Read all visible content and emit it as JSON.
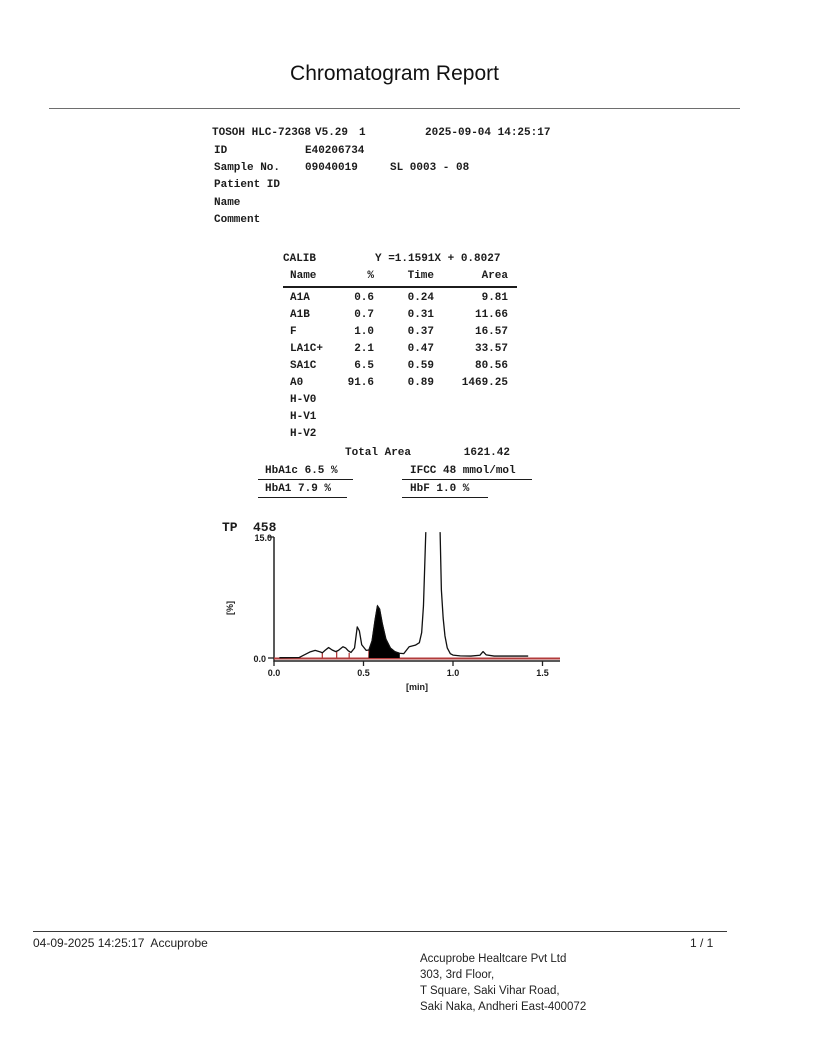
{
  "page": {
    "title": "Chromatogram Report"
  },
  "instrument": {
    "model": "TOSOH HLC-723G8",
    "version": "V5.29",
    "run_flag": "1",
    "datetime": "2025-09-04 14:25:17",
    "id_label": "ID",
    "id_value": "E40206734",
    "sample_label": "Sample No.",
    "sample_value": "09040019",
    "sl_value": "SL 0003 - 08",
    "patient_id_label": "Patient ID",
    "name_label": "Name",
    "comment_label": "Comment"
  },
  "calib": {
    "label": "CALIB",
    "equation": "Y =1.1591X + 0.8027",
    "headers": {
      "name": "Name",
      "pct": "%",
      "time": "Time",
      "area": "Area"
    },
    "rows": [
      {
        "name": "A1A",
        "pct": "0.6",
        "time": "0.24",
        "area": "9.81"
      },
      {
        "name": "A1B",
        "pct": "0.7",
        "time": "0.31",
        "area": "11.66"
      },
      {
        "name": "F",
        "pct": "1.0",
        "time": "0.37",
        "area": "16.57"
      },
      {
        "name": "LA1C+",
        "pct": "2.1",
        "time": "0.47",
        "area": "33.57"
      },
      {
        "name": "SA1C",
        "pct": "6.5",
        "time": "0.59",
        "area": "80.56"
      },
      {
        "name": "A0",
        "pct": "91.6",
        "time": "0.89",
        "area": "1469.25"
      },
      {
        "name": "H-V0",
        "pct": "",
        "time": "",
        "area": ""
      },
      {
        "name": "H-V1",
        "pct": "",
        "time": "",
        "area": ""
      },
      {
        "name": "H-V2",
        "pct": "",
        "time": "",
        "area": ""
      }
    ],
    "total_area_label": "Total Area",
    "total_area_value": "1621.42"
  },
  "results": {
    "hba1c": "HbA1c 6.5 %",
    "ifcc": "IFCC 48 mmol/mol",
    "hba1": "HbA1 7.9 %",
    "hbf": "HbF 1.0 %"
  },
  "chart_data": {
    "type": "line",
    "tp_label": "TP",
    "tp_value": "458",
    "xlabel": "[min]",
    "ylabel": "[%]",
    "xlim": [
      0.0,
      1.6
    ],
    "ylim": [
      0.0,
      15.0
    ],
    "xticks": [
      0.0,
      0.5,
      1.0,
      1.5
    ],
    "xtick_labels": [
      "0.0",
      "0.5",
      "1.0",
      "1.5"
    ],
    "yticks": [
      15.0,
      0.0
    ],
    "ytick_labels": [
      "15.0",
      "0.0"
    ],
    "trace_color": "#111111",
    "baseline_color": "#b23b3b",
    "fill_color": "#000000",
    "peaks": [
      {
        "name": "A1A",
        "time": 0.24,
        "height_pct": 1.0,
        "filled": false,
        "clipped": false
      },
      {
        "name": "A1B",
        "time": 0.31,
        "height_pct": 1.4,
        "filled": false,
        "clipped": false
      },
      {
        "name": "F",
        "time": 0.37,
        "height_pct": 1.5,
        "filled": false,
        "clipped": false
      },
      {
        "name": "LA1C+",
        "time": 0.47,
        "height_pct": 3.9,
        "filled": false,
        "clipped": false
      },
      {
        "name": "SA1C",
        "time": 0.59,
        "height_pct": 6.5,
        "filled": true,
        "clipped": false
      },
      {
        "name": "A0",
        "time": 0.89,
        "height_pct": 15.0,
        "filled": false,
        "clipped": true
      }
    ],
    "trace_segments": [
      [
        [
          0.03,
          0.1
        ],
        [
          0.14,
          0.12
        ],
        [
          0.17,
          0.45
        ],
        [
          0.2,
          0.8
        ],
        [
          0.23,
          1.0
        ],
        [
          0.26,
          0.8
        ],
        [
          0.27,
          0.7
        ],
        [
          0.285,
          1.0
        ],
        [
          0.305,
          1.35
        ],
        [
          0.325,
          1.05
        ],
        [
          0.345,
          0.85
        ],
        [
          0.36,
          1.0
        ],
        [
          0.385,
          1.45
        ],
        [
          0.4,
          1.3
        ],
        [
          0.415,
          0.95
        ],
        [
          0.43,
          0.75
        ],
        [
          0.45,
          1.3
        ],
        [
          0.465,
          3.9
        ],
        [
          0.477,
          3.4
        ],
        [
          0.49,
          1.7
        ],
        [
          0.515,
          1.0
        ],
        [
          0.53,
          1.05
        ],
        [
          0.548,
          2.2
        ],
        [
          0.565,
          4.8
        ],
        [
          0.578,
          6.5
        ],
        [
          0.59,
          6.1
        ],
        [
          0.605,
          4.3
        ],
        [
          0.625,
          2.4
        ],
        [
          0.65,
          1.3
        ],
        [
          0.675,
          0.85
        ],
        [
          0.7,
          0.65
        ],
        [
          0.725,
          0.6
        ],
        [
          0.755,
          1.45
        ],
        [
          0.79,
          1.65
        ],
        [
          0.812,
          1.95
        ],
        [
          0.825,
          3.2
        ],
        [
          0.835,
          6.5
        ],
        [
          0.848,
          15.6
        ]
      ],
      [
        [
          0.928,
          15.6
        ],
        [
          0.935,
          8.5
        ],
        [
          0.945,
          5.0
        ],
        [
          0.955,
          2.8
        ],
        [
          0.968,
          1.3
        ],
        [
          0.985,
          0.6
        ],
        [
          1.0,
          0.42
        ],
        [
          1.04,
          0.32
        ],
        [
          1.1,
          0.3
        ],
        [
          1.15,
          0.4
        ],
        [
          1.168,
          0.85
        ],
        [
          1.185,
          0.45
        ],
        [
          1.23,
          0.3
        ],
        [
          1.31,
          0.3
        ],
        [
          1.42,
          0.3
        ]
      ]
    ],
    "filled_region": [
      [
        0.532,
        0.12
      ],
      [
        0.535,
        1.05
      ],
      [
        0.548,
        2.2
      ],
      [
        0.565,
        4.8
      ],
      [
        0.578,
        6.5
      ],
      [
        0.59,
        6.1
      ],
      [
        0.605,
        4.3
      ],
      [
        0.625,
        2.4
      ],
      [
        0.65,
        1.3
      ],
      [
        0.675,
        0.85
      ],
      [
        0.7,
        0.66
      ],
      [
        0.7,
        0.12
      ]
    ],
    "delimiters": [
      [
        0.27,
        0.75
      ],
      [
        0.35,
        0.9
      ],
      [
        0.42,
        0.7
      ],
      [
        0.53,
        1.05
      ],
      [
        0.695,
        0.7
      ]
    ]
  },
  "footer": {
    "left_text": "04-09-2025 14:25:17  Accuprobe",
    "page_num": "1 / 1",
    "address_lines": [
      "Accuprobe Healtcare Pvt Ltd",
      "303, 3rd Floor,",
      "T Square, Saki Vihar Road,",
      "Saki Naka, Andheri East-400072"
    ]
  }
}
